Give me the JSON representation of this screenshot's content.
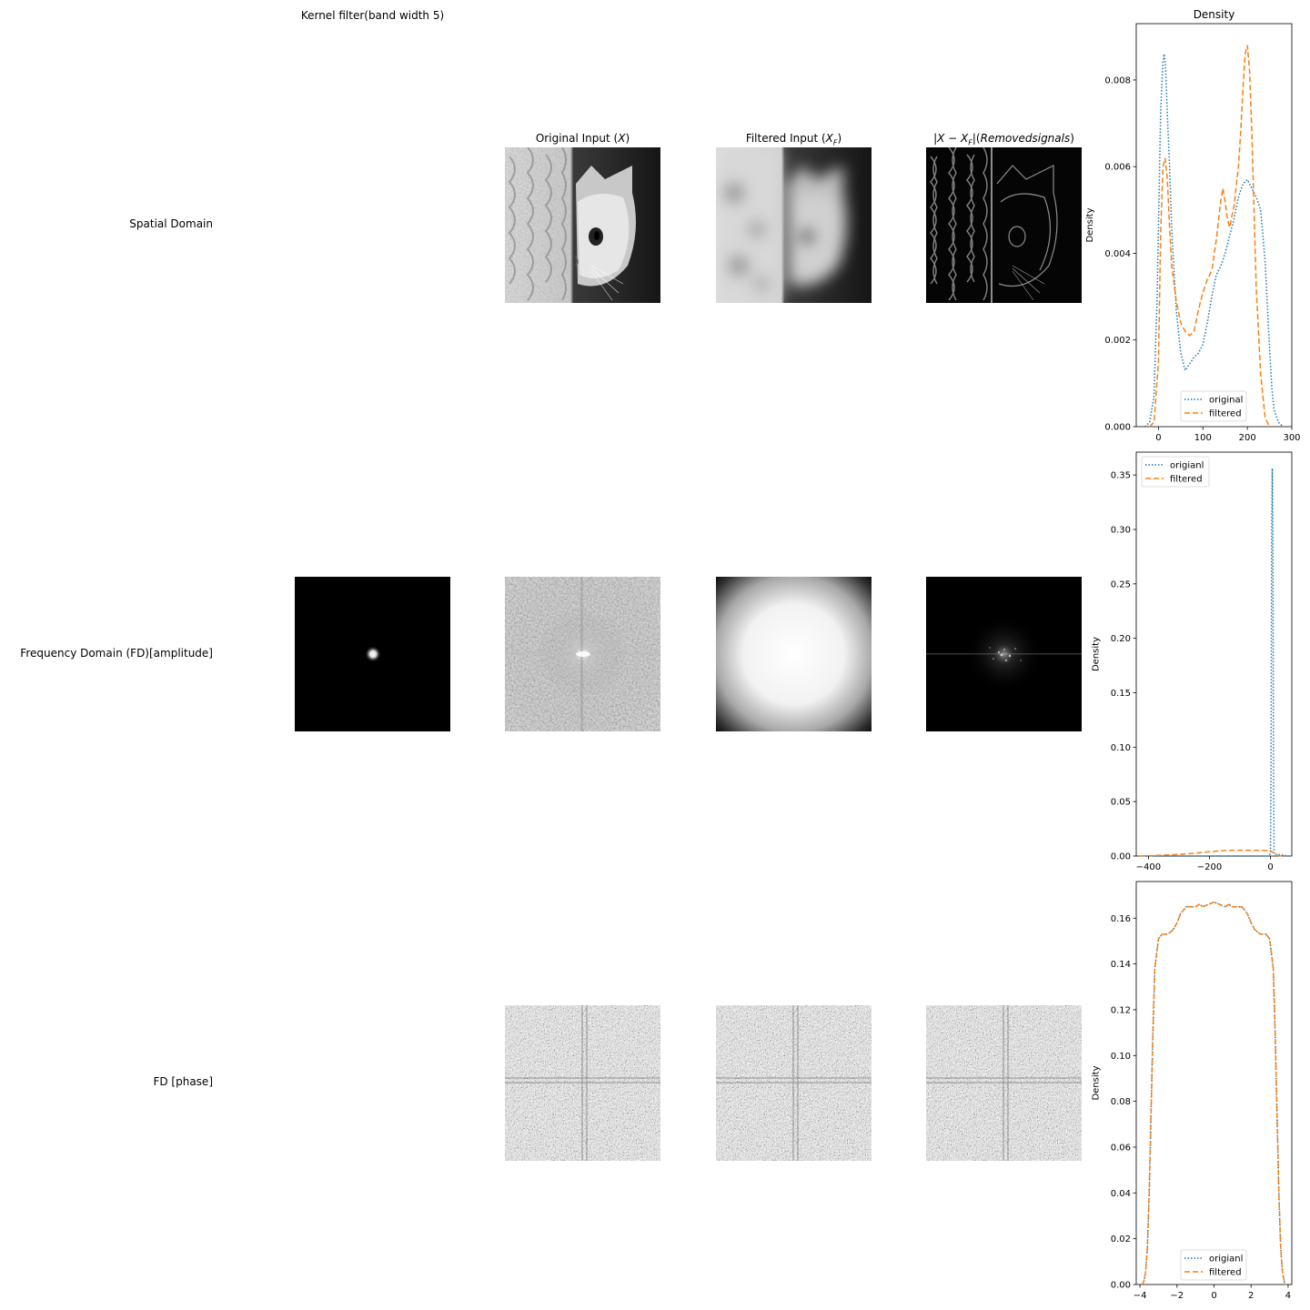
{
  "figure": {
    "row_labels": [
      "Spatial Domain",
      "Frequency Domain (FD)[amplitude]",
      "FD [phase]"
    ],
    "column_titles": {
      "kernel": "Kernel filter(band width 5)",
      "original": "Original Input (X)",
      "filtered": "Filtered Input (X_F)",
      "removed": "|X - X_F|(Removedsignals)",
      "density": "Density"
    },
    "image_descriptions": {
      "kernel_amp": "black square with small bright gaussian dot at center",
      "orig_spatial": "grayscale photo",
      "filt_spatial": "blurred grayscale photo",
      "removed_spatial": "edge map of photo",
      "orig_amp": "log amplitude spectrum",
      "filt_amp": "bright disk fading to dark corners",
      "removed_amp": "mostly black spectrum with faint center",
      "phase": "random noise phase spectrum"
    }
  },
  "chart_data": [
    {
      "type": "line",
      "title": "Density",
      "ylabel": "Density",
      "xlim": [
        -50,
        300
      ],
      "ylim": [
        0,
        0.0093
      ],
      "xticks": [
        0,
        100,
        200,
        300
      ],
      "yticks": [
        "0.000",
        "0.002",
        "0.004",
        "0.006",
        "0.008"
      ],
      "legend": "lower-center",
      "series": [
        {
          "name": "original",
          "style": "dotted",
          "color": "#1f77b4",
          "x": [
            -30,
            -20,
            -10,
            -3,
            5,
            10,
            13,
            16,
            20,
            25,
            30,
            40,
            50,
            60,
            70,
            80,
            90,
            100,
            110,
            120,
            130,
            140,
            150,
            160,
            170,
            180,
            190,
            200,
            210,
            220,
            230,
            240,
            245,
            250,
            255,
            260,
            270,
            280
          ],
          "y": [
            0,
            0.0001,
            0.0007,
            0.003,
            0.0073,
            0.0084,
            0.0086,
            0.0083,
            0.0072,
            0.006,
            0.0045,
            0.0027,
            0.0017,
            0.0013,
            0.00145,
            0.0016,
            0.0017,
            0.0019,
            0.0024,
            0.003,
            0.0035,
            0.0037,
            0.004,
            0.0044,
            0.0048,
            0.0053,
            0.0056,
            0.0057,
            0.0055,
            0.0053,
            0.005,
            0.0038,
            0.0028,
            0.0018,
            0.0009,
            0.0004,
            0.0001,
            0
          ]
        },
        {
          "name": "filtered",
          "style": "dashed",
          "color": "#ff7f0e",
          "x": [
            -20,
            -10,
            0,
            5,
            10,
            15,
            20,
            25,
            30,
            40,
            50,
            60,
            70,
            80,
            90,
            100,
            110,
            120,
            130,
            140,
            145,
            150,
            155,
            160,
            170,
            180,
            185,
            190,
            195,
            200,
            205,
            210,
            215,
            220,
            230,
            240,
            250
          ],
          "y": [
            0,
            0.0001,
            0.0015,
            0.0045,
            0.006,
            0.0062,
            0.0057,
            0.0046,
            0.0037,
            0.0029,
            0.0024,
            0.0022,
            0.0021,
            0.0022,
            0.0027,
            0.0031,
            0.0034,
            0.0036,
            0.0043,
            0.0052,
            0.0055,
            0.0052,
            0.0048,
            0.0046,
            0.0051,
            0.006,
            0.0068,
            0.0078,
            0.0086,
            0.0088,
            0.0082,
            0.0068,
            0.005,
            0.0032,
            0.0012,
            0.0002,
            0
          ]
        }
      ]
    },
    {
      "type": "line",
      "ylabel": "Density",
      "xlim": [
        -440,
        70
      ],
      "ylim": [
        0,
        0.371
      ],
      "xticks": [
        -400,
        -200,
        0
      ],
      "yticks": [
        "0.00",
        "0.05",
        "0.10",
        "0.15",
        "0.20",
        "0.25",
        "0.30",
        "0.35"
      ],
      "legend": "upper-left",
      "series": [
        {
          "name": "origianl",
          "style": "dotted",
          "color": "#1f77b4",
          "x": [
            -420,
            -10,
            0,
            2,
            4,
            6,
            8,
            10,
            12,
            60
          ],
          "y": [
            0,
            0,
            0.002,
            0.08,
            0.3,
            0.356,
            0.3,
            0.08,
            0.002,
            0
          ]
        },
        {
          "name": "filtered",
          "style": "dashed",
          "color": "#ff7f0e",
          "x": [
            -430,
            -400,
            -350,
            -300,
            -250,
            -200,
            -150,
            -100,
            -50,
            -10,
            0,
            10,
            20,
            30,
            50
          ],
          "y": [
            0,
            0.0003,
            0.0008,
            0.0015,
            0.0025,
            0.004,
            0.005,
            0.0053,
            0.0052,
            0.0051,
            0.0049,
            0.003,
            0.001,
            0.0002,
            0
          ]
        }
      ]
    },
    {
      "type": "line",
      "ylabel": "Density",
      "xlim": [
        -4.2,
        4.2
      ],
      "ylim": [
        0,
        0.176
      ],
      "xticks": [
        -4,
        -2,
        0,
        2,
        4
      ],
      "yticks": [
        "0.00",
        "0.02",
        "0.04",
        "0.06",
        "0.08",
        "0.10",
        "0.12",
        "0.14",
        "0.16"
      ],
      "legend": "lower-center",
      "series": [
        {
          "name": "origianl",
          "style": "dotted",
          "color": "#1f77b4",
          "x": [
            -3.9,
            -3.8,
            -3.7,
            -3.6,
            -3.5,
            -3.4,
            -3.3,
            -3.2,
            -3.0,
            -2.8,
            -2.5,
            -2.2,
            -2.0,
            -1.8,
            -1.5,
            -1.2,
            -1.0,
            -0.8,
            -0.6,
            -0.3,
            0,
            0.3,
            0.6,
            0.8,
            1.0,
            1.2,
            1.5,
            1.8,
            2.0,
            2.2,
            2.5,
            2.8,
            3.0,
            3.2,
            3.3,
            3.4,
            3.5,
            3.6,
            3.7,
            3.8,
            3.9
          ],
          "y": [
            0,
            0.001,
            0.005,
            0.016,
            0.04,
            0.075,
            0.11,
            0.138,
            0.151,
            0.153,
            0.153,
            0.155,
            0.158,
            0.162,
            0.165,
            0.165,
            0.165,
            0.166,
            0.165,
            0.166,
            0.167,
            0.166,
            0.165,
            0.166,
            0.165,
            0.165,
            0.165,
            0.162,
            0.158,
            0.155,
            0.153,
            0.153,
            0.151,
            0.138,
            0.11,
            0.075,
            0.04,
            0.016,
            0.005,
            0.001,
            0
          ]
        },
        {
          "name": "filtered",
          "style": "dashed",
          "color": "#ff7f0e",
          "x": [
            -3.9,
            -3.8,
            -3.7,
            -3.6,
            -3.5,
            -3.4,
            -3.3,
            -3.2,
            -3.0,
            -2.8,
            -2.5,
            -2.2,
            -2.0,
            -1.8,
            -1.5,
            -1.2,
            -1.0,
            -0.8,
            -0.6,
            -0.3,
            0,
            0.3,
            0.6,
            0.8,
            1.0,
            1.2,
            1.5,
            1.8,
            2.0,
            2.2,
            2.5,
            2.8,
            3.0,
            3.2,
            3.3,
            3.4,
            3.5,
            3.6,
            3.7,
            3.8,
            3.9
          ],
          "y": [
            0,
            0.001,
            0.005,
            0.016,
            0.04,
            0.075,
            0.11,
            0.138,
            0.151,
            0.153,
            0.153,
            0.155,
            0.158,
            0.162,
            0.165,
            0.165,
            0.165,
            0.166,
            0.165,
            0.166,
            0.167,
            0.166,
            0.165,
            0.166,
            0.165,
            0.165,
            0.165,
            0.162,
            0.158,
            0.155,
            0.153,
            0.153,
            0.151,
            0.138,
            0.11,
            0.075,
            0.04,
            0.016,
            0.005,
            0.001,
            0
          ]
        }
      ]
    }
  ]
}
